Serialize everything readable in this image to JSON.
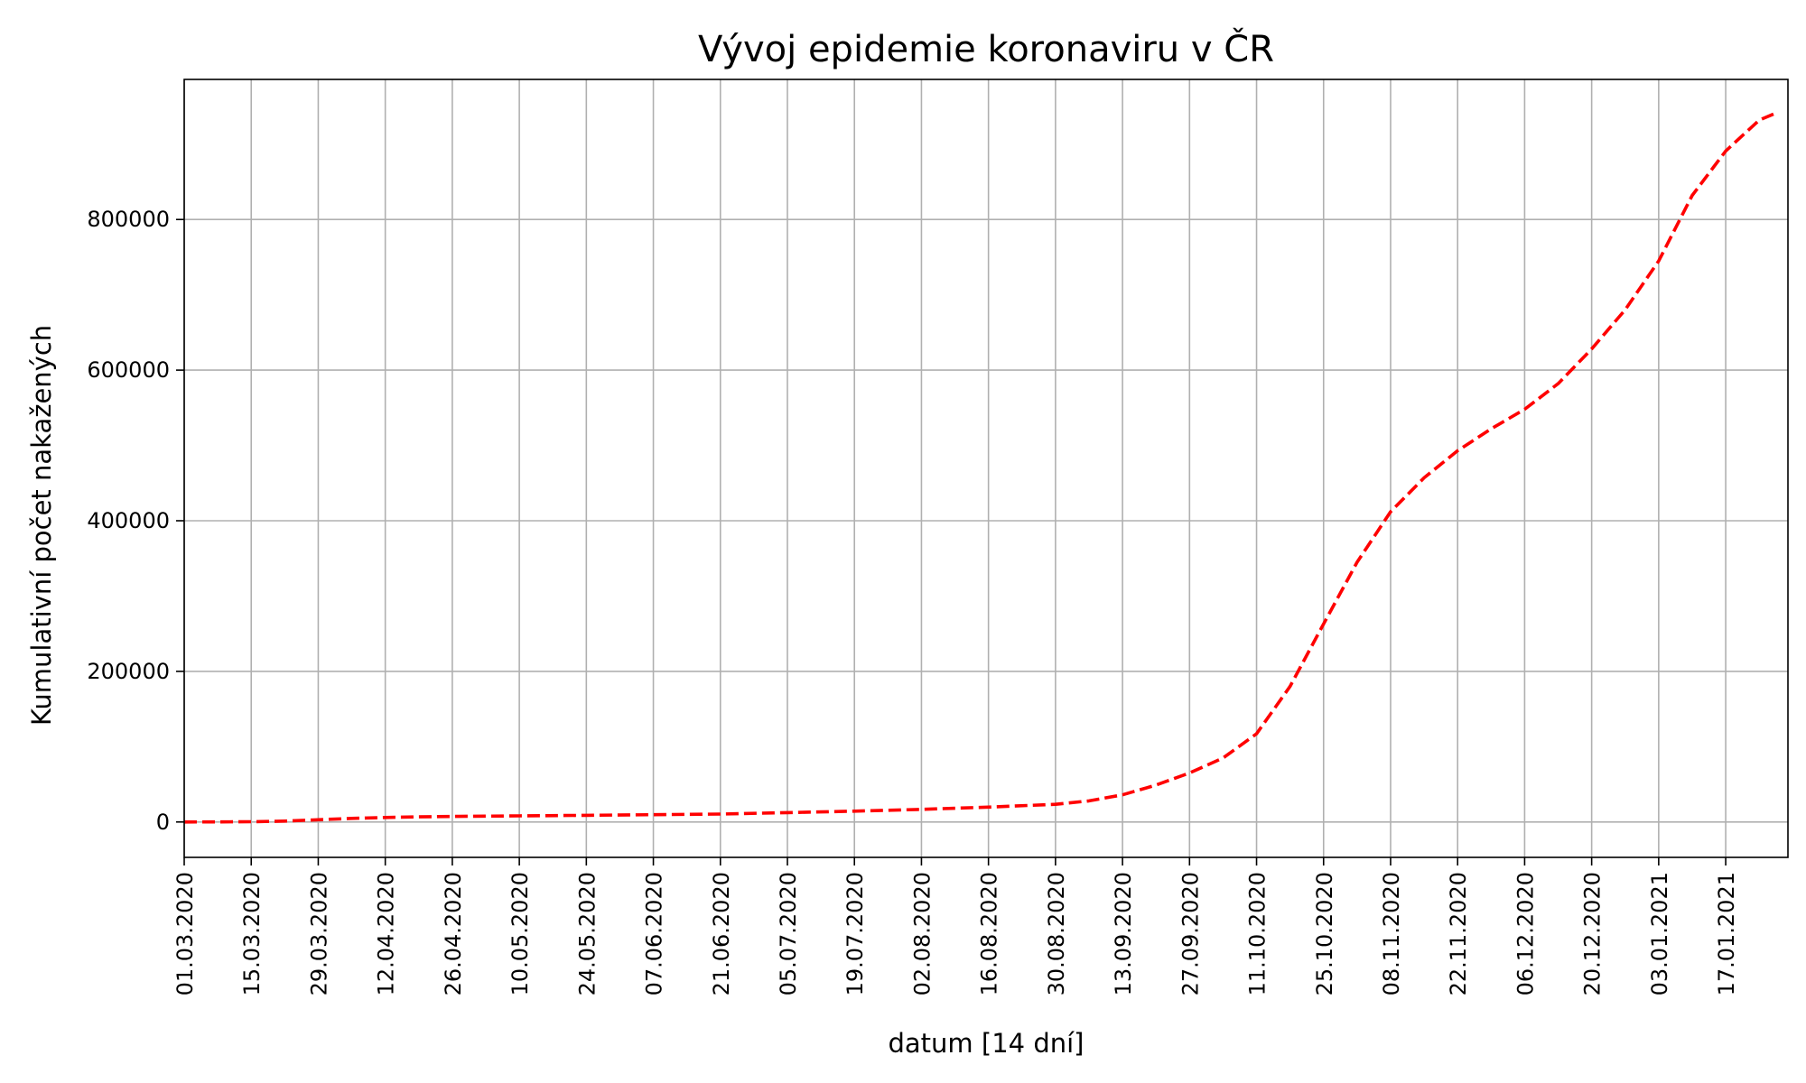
{
  "chart_data": {
    "type": "line",
    "title": "Vývoj epidemie koronaviru v ČR",
    "xlabel": "datum [14 dní]",
    "ylabel": "Kumulativní počet nakažených",
    "x_tick_labels": [
      "01.03.2020",
      "15.03.2020",
      "29.03.2020",
      "12.04.2020",
      "26.04.2020",
      "10.05.2020",
      "24.05.2020",
      "07.06.2020",
      "21.06.2020",
      "05.07.2020",
      "19.07.2020",
      "02.08.2020",
      "16.08.2020",
      "30.08.2020",
      "13.09.2020",
      "27.09.2020",
      "11.10.2020",
      "25.10.2020",
      "08.11.2020",
      "22.11.2020",
      "06.12.2020",
      "20.12.2020",
      "03.01.2021",
      "17.01.2021"
    ],
    "y_ticks": [
      0,
      200000,
      400000,
      600000,
      800000
    ],
    "xlim": [
      "01.03.2020",
      "30.01.2021"
    ],
    "ylim": [
      -47000,
      986000
    ],
    "grid": true,
    "series": [
      {
        "color": "#ff0000",
        "line_style": "dashed",
        "points": [
          [
            "01.03.2020",
            0
          ],
          [
            "08.03.2020",
            50
          ],
          [
            "15.03.2020",
            300
          ],
          [
            "22.03.2020",
            1200
          ],
          [
            "29.03.2020",
            3000
          ],
          [
            "05.04.2020",
            4800
          ],
          [
            "12.04.2020",
            6000
          ],
          [
            "19.04.2020",
            6800
          ],
          [
            "26.04.2020",
            7400
          ],
          [
            "10.05.2020",
            8100
          ],
          [
            "24.05.2020",
            8900
          ],
          [
            "07.06.2020",
            9700
          ],
          [
            "21.06.2020",
            10500
          ],
          [
            "05.07.2020",
            12400
          ],
          [
            "19.07.2020",
            14300
          ],
          [
            "02.08.2020",
            16700
          ],
          [
            "16.08.2020",
            19800
          ],
          [
            "30.08.2020",
            23500
          ],
          [
            "06.09.2020",
            28000
          ],
          [
            "13.09.2020",
            36000
          ],
          [
            "20.09.2020",
            49000
          ],
          [
            "27.09.2020",
            65000
          ],
          [
            "04.10.2020",
            85000
          ],
          [
            "11.10.2020",
            117000
          ],
          [
            "18.10.2020",
            180000
          ],
          [
            "25.10.2020",
            263000
          ],
          [
            "01.11.2020",
            345000
          ],
          [
            "08.11.2020",
            412000
          ],
          [
            "15.11.2020",
            457000
          ],
          [
            "22.11.2020",
            493000
          ],
          [
            "29.11.2020",
            522000
          ],
          [
            "06.12.2020",
            548000
          ],
          [
            "13.12.2020",
            582000
          ],
          [
            "20.12.2020",
            628000
          ],
          [
            "27.12.2020",
            680000
          ],
          [
            "03.01.2021",
            745000
          ],
          [
            "10.01.2021",
            832000
          ],
          [
            "17.01.2021",
            891000
          ],
          [
            "24.01.2021",
            932000
          ],
          [
            "27.01.2021",
            940000
          ]
        ]
      }
    ]
  }
}
